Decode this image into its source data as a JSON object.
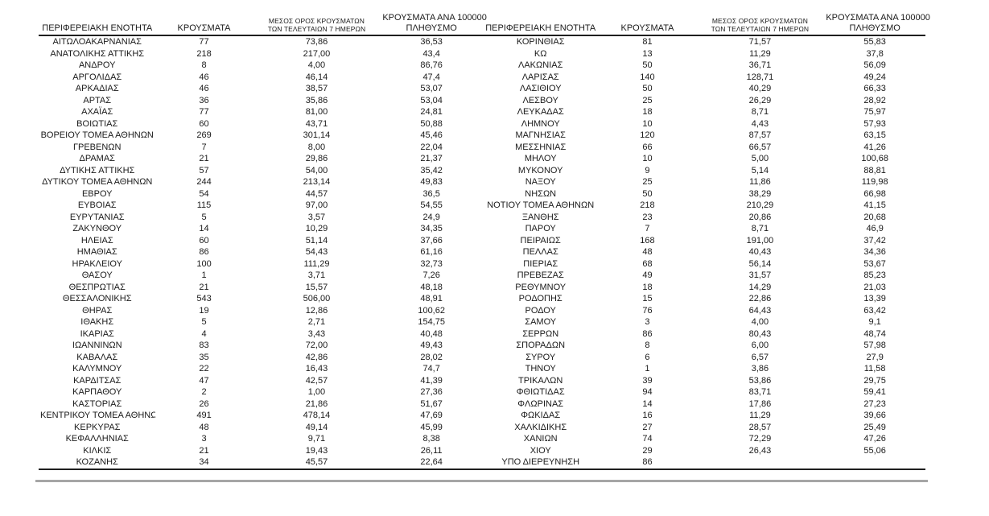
{
  "columns": {
    "region": "ΠΕΡΙΦΕΡΕΙΑΚΗ ΕΝΟΤΗΤΑ",
    "cases": "ΚΡΟΥΣΜΑΤΑ",
    "avg7_line1": "ΜΕΣΟΣ ΟΡΟΣ ΚΡΟΥΣΜΑΤΩΝ",
    "avg7_line2": "ΤΩΝ ΤΕΛΕΥΤΑΙΩΝ 7 ΗΜΕΡΩΝ",
    "per100k_line1": "ΚΡΟΥΣΜΑΤΑ ΑΝΑ 100000",
    "per100k_line2": "ΠΛΗΘΥΣΜΟ"
  },
  "left_table": {
    "rows": [
      [
        "ΑΙΤΩΛΟΑΚΑΡΝΑΝΙΑΣ",
        "77",
        "73,86",
        "36,53"
      ],
      [
        "ΑΝΑΤΟΛΙΚΗΣ ΑΤΤΙΚΗΣ",
        "218",
        "217,00",
        "43,4"
      ],
      [
        "ΑΝΔΡΟΥ",
        "8",
        "4,00",
        "86,76"
      ],
      [
        "ΑΡΓΟΛΙΔΑΣ",
        "46",
        "46,14",
        "47,4"
      ],
      [
        "ΑΡΚΑΔΙΑΣ",
        "46",
        "38,57",
        "53,07"
      ],
      [
        "ΑΡΤΑΣ",
        "36",
        "35,86",
        "53,04"
      ],
      [
        "ΑΧΑΪΑΣ",
        "77",
        "81,00",
        "24,81"
      ],
      [
        "ΒΟΙΩΤΙΑΣ",
        "60",
        "43,71",
        "50,88"
      ],
      [
        "ΒΟΡΕΙΟΥ ΤΟΜΕΑ ΑΘΗΝΩΝ",
        "269",
        "301,14",
        "45,46"
      ],
      [
        "ΓΡΕΒΕΝΩΝ",
        "7",
        "8,00",
        "22,04"
      ],
      [
        "ΔΡΑΜΑΣ",
        "21",
        "29,86",
        "21,37"
      ],
      [
        "ΔΥΤΙΚΗΣ ΑΤΤΙΚΗΣ",
        "57",
        "54,00",
        "35,42"
      ],
      [
        "ΔΥΤΙΚΟΥ ΤΟΜΕΑ ΑΘΗΝΩΝ",
        "244",
        "213,14",
        "49,83"
      ],
      [
        "ΕΒΡΟΥ",
        "54",
        "44,57",
        "36,5"
      ],
      [
        "ΕΥΒΟΙΑΣ",
        "115",
        "97,00",
        "54,55"
      ],
      [
        "ΕΥΡΥΤΑΝΙΑΣ",
        "5",
        "3,57",
        "24,9"
      ],
      [
        "ΖΑΚΥΝΘΟΥ",
        "14",
        "10,29",
        "34,35"
      ],
      [
        "ΗΛΕΙΑΣ",
        "60",
        "51,14",
        "37,66"
      ],
      [
        "ΗΜΑΘΙΑΣ",
        "86",
        "54,43",
        "61,16"
      ],
      [
        "ΗΡΑΚΛΕΙΟΥ",
        "100",
        "111,29",
        "32,73"
      ],
      [
        "ΘΑΣΟΥ",
        "1",
        "3,71",
        "7,26"
      ],
      [
        "ΘΕΣΠΡΩΤΙΑΣ",
        "21",
        "15,57",
        "48,18"
      ],
      [
        "ΘΕΣΣΑΛΟΝΙΚΗΣ",
        "543",
        "506,00",
        "48,91"
      ],
      [
        "ΘΗΡΑΣ",
        "19",
        "12,86",
        "100,62"
      ],
      [
        "ΙΘΑΚΗΣ",
        "5",
        "2,71",
        "154,75"
      ],
      [
        "ΙΚΑΡΙΑΣ",
        "4",
        "3,43",
        "40,48"
      ],
      [
        "ΙΩΑΝΝΙΝΩΝ",
        "83",
        "72,00",
        "49,43"
      ],
      [
        "ΚΑΒΑΛΑΣ",
        "35",
        "42,86",
        "28,02"
      ],
      [
        "ΚΑΛΥΜΝΟΥ",
        "22",
        "16,43",
        "74,7"
      ],
      [
        "ΚΑΡΔΙΤΣΑΣ",
        "47",
        "42,57",
        "41,39"
      ],
      [
        "ΚΑΡΠΑΘΟΥ",
        "2",
        "1,00",
        "27,36"
      ],
      [
        "ΚΑΣΤΟΡΙΑΣ",
        "26",
        "21,86",
        "51,67"
      ],
      [
        "ΚΕΝΤΡΙΚΟΥ ΤΟΜΕΑ ΑΘΗΝΩΝ",
        "491",
        "478,14",
        "47,69"
      ],
      [
        "ΚΕΡΚΥΡΑΣ",
        "48",
        "49,14",
        "45,99"
      ],
      [
        "ΚΕΦΑΛΛΗΝΙΑΣ",
        "3",
        "9,71",
        "8,38"
      ],
      [
        "ΚΙΛΚΙΣ",
        "21",
        "19,43",
        "26,11"
      ],
      [
        "ΚΟΖΑΝΗΣ",
        "34",
        "45,57",
        "22,64"
      ]
    ]
  },
  "right_table": {
    "rows": [
      [
        "ΚΟΡΙΝΘΙΑΣ",
        "81",
        "71,57",
        "55,83"
      ],
      [
        "ΚΩ",
        "13",
        "11,29",
        "37,8"
      ],
      [
        "ΛΑΚΩΝΙΑΣ",
        "50",
        "36,71",
        "56,09"
      ],
      [
        "ΛΑΡΙΣΑΣ",
        "140",
        "128,71",
        "49,24"
      ],
      [
        "ΛΑΣΙΘΙΟΥ",
        "50",
        "40,29",
        "66,33"
      ],
      [
        "ΛΕΣΒΟΥ",
        "25",
        "26,29",
        "28,92"
      ],
      [
        "ΛΕΥΚΑΔΑΣ",
        "18",
        "8,71",
        "75,97"
      ],
      [
        "ΛΗΜΝΟΥ",
        "10",
        "4,43",
        "57,93"
      ],
      [
        "ΜΑΓΝΗΣΙΑΣ",
        "120",
        "87,57",
        "63,15"
      ],
      [
        "ΜΕΣΣΗΝΙΑΣ",
        "66",
        "66,57",
        "41,26"
      ],
      [
        "ΜΗΛΟΥ",
        "10",
        "5,00",
        "100,68"
      ],
      [
        "ΜΥΚΟΝΟΥ",
        "9",
        "5,14",
        "88,81"
      ],
      [
        "ΝΑΞΟΥ",
        "25",
        "11,86",
        "119,98"
      ],
      [
        "ΝΗΣΩΝ",
        "50",
        "38,29",
        "66,98"
      ],
      [
        "ΝΟΤΙΟΥ ΤΟΜΕΑ ΑΘΗΝΩΝ",
        "218",
        "210,29",
        "41,15"
      ],
      [
        "ΞΑΝΘΗΣ",
        "23",
        "20,86",
        "20,68"
      ],
      [
        "ΠΑΡΟΥ",
        "7",
        "8,71",
        "46,9"
      ],
      [
        "ΠΕΙΡΑΙΩΣ",
        "168",
        "191,00",
        "37,42"
      ],
      [
        "ΠΕΛΛΑΣ",
        "48",
        "40,43",
        "34,36"
      ],
      [
        "ΠΙΕΡΙΑΣ",
        "68",
        "56,14",
        "53,67"
      ],
      [
        "ΠΡΕΒΕΖΑΣ",
        "49",
        "31,57",
        "85,23"
      ],
      [
        "ΡΕΘΥΜΝΟΥ",
        "18",
        "14,29",
        "21,03"
      ],
      [
        "ΡΟΔΟΠΗΣ",
        "15",
        "22,86",
        "13,39"
      ],
      [
        "ΡΟΔΟΥ",
        "76",
        "64,43",
        "63,42"
      ],
      [
        "ΣΑΜΟΥ",
        "3",
        "4,00",
        "9,1"
      ],
      [
        "ΣΕΡΡΩΝ",
        "86",
        "80,43",
        "48,74"
      ],
      [
        "ΣΠΟΡΑΔΩΝ",
        "8",
        "6,00",
        "57,98"
      ],
      [
        "ΣΥΡΟΥ",
        "6",
        "6,57",
        "27,9"
      ],
      [
        "ΤΗΝΟΥ",
        "1",
        "3,86",
        "11,58"
      ],
      [
        "ΤΡΙΚΑΛΩΝ",
        "39",
        "53,86",
        "29,75"
      ],
      [
        "ΦΘΙΩΤΙΔΑΣ",
        "94",
        "83,71",
        "59,41"
      ],
      [
        "ΦΛΩΡΙΝΑΣ",
        "14",
        "17,86",
        "27,23"
      ],
      [
        "ΦΩΚΙΔΑΣ",
        "16",
        "11,29",
        "39,66"
      ],
      [
        "ΧΑΛΚΙΔΙΚΗΣ",
        "27",
        "28,57",
        "25,49"
      ],
      [
        "ΧΑΝΙΩΝ",
        "74",
        "72,29",
        "47,26"
      ],
      [
        "ΧΙΟΥ",
        "29",
        "26,43",
        "55,06"
      ],
      [
        "ΥΠΟ ΔΙΕΡΕΥΝΗΣΗ",
        "86",
        "",
        ""
      ]
    ]
  }
}
